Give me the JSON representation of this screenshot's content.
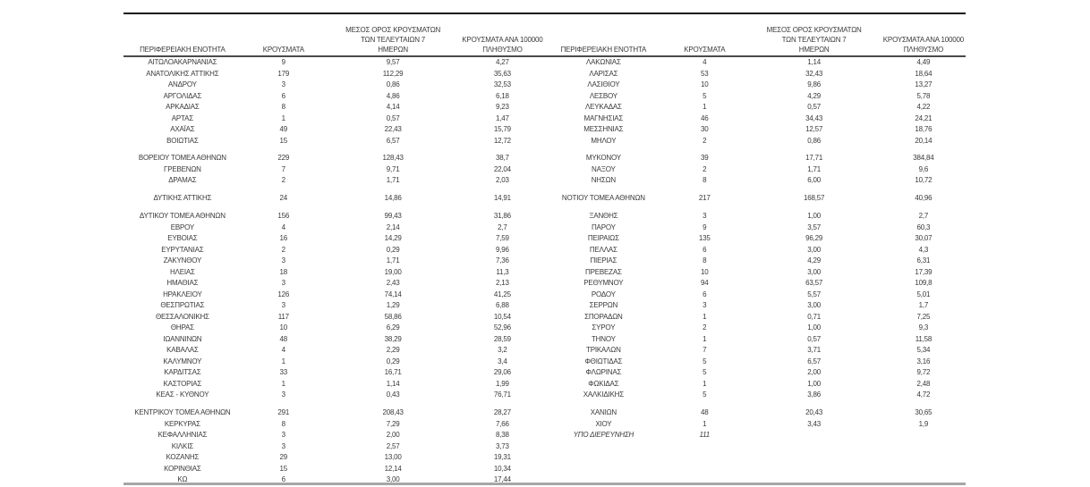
{
  "table": {
    "headers": {
      "region": "ΠΕΡΙΦΕΡΕΙΑΚΗ ΕΝΟΤΗΤΑ",
      "cases": "ΚΡΟΥΣΜΑΤΑ",
      "avg7_lines": [
        "ΜΕΣΟΣ ΟΡΟΣ ΚΡΟΥΣΜΑΤΩΝ",
        "ΤΩΝ ΤΕΛΕΥΤΑΙΩΝ 7",
        "ΗΜΕΡΩΝ"
      ],
      "per100k_lines": [
        "ΚΡΟΥΣΜΑΤΑ ΑΝΑ 100000",
        "ΠΛΗΘΥΣΜΟ"
      ]
    },
    "colors": {
      "text": "#3a3a3a",
      "top_rule": "#161616",
      "header_rule": "#4a4a4a",
      "bottom_rule": "#a6a6a6"
    },
    "left_rows": [
      {
        "region": "ΑΙΤΩΛΟΑΚΑΡΝΑΝΙΑΣ",
        "cases": "9",
        "avg7": "9,57",
        "per100k": "4,27"
      },
      {
        "region": "ΑΝΑΤΟΛΙΚΗΣ ΑΤΤΙΚΗΣ",
        "cases": "179",
        "avg7": "112,29",
        "per100k": "35,63"
      },
      {
        "region": "ΑΝΔΡΟΥ",
        "cases": "3",
        "avg7": "0,86",
        "per100k": "32,53"
      },
      {
        "region": "ΑΡΓΟΛΙΔΑΣ",
        "cases": "6",
        "avg7": "4,86",
        "per100k": "6,18"
      },
      {
        "region": "ΑΡΚΑΔΙΑΣ",
        "cases": "8",
        "avg7": "4,14",
        "per100k": "9,23"
      },
      {
        "region": "ΑΡΤΑΣ",
        "cases": "1",
        "avg7": "0,57",
        "per100k": "1,47"
      },
      {
        "region": "ΑΧΑΪΑΣ",
        "cases": "49",
        "avg7": "22,43",
        "per100k": "15,79"
      },
      {
        "region": "ΒΟΙΩΤΙΑΣ",
        "cases": "15",
        "avg7": "6,57",
        "per100k": "12,72"
      },
      {
        "blank": true
      },
      {
        "region": "ΒΟΡΕΙΟΥ ΤΟΜΕΑ ΑΘΗΝΩΝ",
        "cases": "229",
        "avg7": "128,43",
        "per100k": "38,7"
      },
      {
        "region": "ΓΡΕΒΕΝΩΝ",
        "cases": "7",
        "avg7": "9,71",
        "per100k": "22,04"
      },
      {
        "region": "ΔΡΑΜΑΣ",
        "cases": "2",
        "avg7": "1,71",
        "per100k": "2,03"
      },
      {
        "blank": true
      },
      {
        "region": "ΔΥΤΙΚΗΣ ΑΤΤΙΚΗΣ",
        "cases": "24",
        "avg7": "14,86",
        "per100k": "14,91"
      },
      {
        "blank": true
      },
      {
        "region": "ΔΥΤΙΚΟΥ ΤΟΜΕΑ ΑΘΗΝΩΝ",
        "cases": "156",
        "avg7": "99,43",
        "per100k": "31,86"
      },
      {
        "region": "ΕΒΡΟΥ",
        "cases": "4",
        "avg7": "2,14",
        "per100k": "2,7"
      },
      {
        "region": "ΕΥΒΟΙΑΣ",
        "cases": "16",
        "avg7": "14,29",
        "per100k": "7,59"
      },
      {
        "region": "ΕΥΡΥΤΑΝΙΑΣ",
        "cases": "2",
        "avg7": "0,29",
        "per100k": "9,96"
      },
      {
        "region": "ΖΑΚΥΝΘΟΥ",
        "cases": "3",
        "avg7": "1,71",
        "per100k": "7,36"
      },
      {
        "region": "ΗΛΕΙΑΣ",
        "cases": "18",
        "avg7": "19,00",
        "per100k": "11,3"
      },
      {
        "region": "ΗΜΑΘΙΑΣ",
        "cases": "3",
        "avg7": "2,43",
        "per100k": "2,13"
      },
      {
        "region": "ΗΡΑΚΛΕΙΟΥ",
        "cases": "126",
        "avg7": "74,14",
        "per100k": "41,25"
      },
      {
        "region": "ΘΕΣΠΡΩΤΙΑΣ",
        "cases": "3",
        "avg7": "1,29",
        "per100k": "6,88"
      },
      {
        "region": "ΘΕΣΣΑΛΟΝΙΚΗΣ",
        "cases": "117",
        "avg7": "58,86",
        "per100k": "10,54"
      },
      {
        "region": "ΘΗΡΑΣ",
        "cases": "10",
        "avg7": "6,29",
        "per100k": "52,96"
      },
      {
        "region": "ΙΩΑΝΝΙΝΩΝ",
        "cases": "48",
        "avg7": "38,29",
        "per100k": "28,59"
      },
      {
        "region": "ΚΑΒΑΛΑΣ",
        "cases": "4",
        "avg7": "2,29",
        "per100k": "3,2"
      },
      {
        "region": "ΚΑΛΥΜΝΟΥ",
        "cases": "1",
        "avg7": "0,29",
        "per100k": "3,4"
      },
      {
        "region": "ΚΑΡΔΙΤΣΑΣ",
        "cases": "33",
        "avg7": "16,71",
        "per100k": "29,06"
      },
      {
        "region": "ΚΑΣΤΟΡΙΑΣ",
        "cases": "1",
        "avg7": "1,14",
        "per100k": "1,99"
      },
      {
        "region": "ΚΕΑΣ - ΚΥΘΝΟΥ",
        "cases": "3",
        "avg7": "0,43",
        "per100k": "76,71"
      },
      {
        "blank": true
      },
      {
        "region": "ΚΕΝΤΡΙΚΟΥ ΤΟΜΕΑ ΑΘΗΝΩΝ",
        "cases": "291",
        "avg7": "208,43",
        "per100k": "28,27"
      },
      {
        "region": "ΚΕΡΚΥΡΑΣ",
        "cases": "8",
        "avg7": "7,29",
        "per100k": "7,66"
      },
      {
        "region": "ΚΕΦΑΛΛΗΝΙΑΣ",
        "cases": "3",
        "avg7": "2,00",
        "per100k": "8,38"
      },
      {
        "region": "ΚΙΛΚΙΣ",
        "cases": "3",
        "avg7": "2,57",
        "per100k": "3,73"
      },
      {
        "region": "ΚΟΖΑΝΗΣ",
        "cases": "29",
        "avg7": "13,00",
        "per100k": "19,31"
      },
      {
        "region": "ΚΟΡΙΝΘΙΑΣ",
        "cases": "15",
        "avg7": "12,14",
        "per100k": "10,34"
      },
      {
        "region": "ΚΩ",
        "cases": "6",
        "avg7": "3,00",
        "per100k": "17,44"
      }
    ],
    "right_rows": [
      {
        "region": "ΛΑΚΩΝΙΑΣ",
        "cases": "4",
        "avg7": "1,14",
        "per100k": "4,49"
      },
      {
        "region": "ΛΑΡΙΣΑΣ",
        "cases": "53",
        "avg7": "32,43",
        "per100k": "18,64"
      },
      {
        "region": "ΛΑΣΙΘΙΟΥ",
        "cases": "10",
        "avg7": "9,86",
        "per100k": "13,27"
      },
      {
        "region": "ΛΕΣΒΟΥ",
        "cases": "5",
        "avg7": "4,29",
        "per100k": "5,78"
      },
      {
        "region": "ΛΕΥΚΑΔΑΣ",
        "cases": "1",
        "avg7": "0,57",
        "per100k": "4,22"
      },
      {
        "region": "ΜΑΓΝΗΣΙΑΣ",
        "cases": "46",
        "avg7": "34,43",
        "per100k": "24,21"
      },
      {
        "region": "ΜΕΣΣΗΝΙΑΣ",
        "cases": "30",
        "avg7": "12,57",
        "per100k": "18,76"
      },
      {
        "region": "ΜΗΛΟΥ",
        "cases": "2",
        "avg7": "0,86",
        "per100k": "20,14"
      },
      {
        "blank": true
      },
      {
        "region": "ΜΥΚΟΝΟΥ",
        "cases": "39",
        "avg7": "17,71",
        "per100k": "384,84"
      },
      {
        "region": "ΝΑΞΟΥ",
        "cases": "2",
        "avg7": "1,71",
        "per100k": "9,6"
      },
      {
        "region": "ΝΗΣΩΝ",
        "cases": "8",
        "avg7": "6,00",
        "per100k": "10,72"
      },
      {
        "blank": true
      },
      {
        "region": "ΝΟΤΙΟΥ ΤΟΜΕΑ ΑΘΗΝΩΝ",
        "cases": "217",
        "avg7": "168,57",
        "per100k": "40,96"
      },
      {
        "blank": true
      },
      {
        "region": "ΞΑΝΘΗΣ",
        "cases": "3",
        "avg7": "1,00",
        "per100k": "2,7"
      },
      {
        "region": "ΠΑΡΟΥ",
        "cases": "9",
        "avg7": "3,57",
        "per100k": "60,3"
      },
      {
        "region": "ΠΕΙΡΑΙΩΣ",
        "cases": "135",
        "avg7": "96,29",
        "per100k": "30,07"
      },
      {
        "region": "ΠΕΛΛΑΣ",
        "cases": "6",
        "avg7": "3,00",
        "per100k": "4,3"
      },
      {
        "region": "ΠΙΕΡΙΑΣ",
        "cases": "8",
        "avg7": "4,29",
        "per100k": "6,31"
      },
      {
        "region": "ΠΡΕΒΕΖΑΣ",
        "cases": "10",
        "avg7": "3,00",
        "per100k": "17,39"
      },
      {
        "region": "ΡΕΘΥΜΝΟΥ",
        "cases": "94",
        "avg7": "63,57",
        "per100k": "109,8"
      },
      {
        "region": "ΡΟΔΟΥ",
        "cases": "6",
        "avg7": "5,57",
        "per100k": "5,01"
      },
      {
        "region": "ΣΕΡΡΩΝ",
        "cases": "3",
        "avg7": "3,00",
        "per100k": "1,7"
      },
      {
        "region": "ΣΠΟΡΑΔΩΝ",
        "cases": "1",
        "avg7": "0,71",
        "per100k": "7,25"
      },
      {
        "region": "ΣΥΡΟΥ",
        "cases": "2",
        "avg7": "1,00",
        "per100k": "9,3"
      },
      {
        "region": "ΤΗΝΟΥ",
        "cases": "1",
        "avg7": "0,57",
        "per100k": "11,58"
      },
      {
        "region": "ΤΡΙΚΑΛΩΝ",
        "cases": "7",
        "avg7": "3,71",
        "per100k": "5,34"
      },
      {
        "region": "ΦΘΙΩΤΙΔΑΣ",
        "cases": "5",
        "avg7": "6,57",
        "per100k": "3,16"
      },
      {
        "region": "ΦΛΩΡΙΝΑΣ",
        "cases": "5",
        "avg7": "2,00",
        "per100k": "9,72"
      },
      {
        "region": "ΦΩΚΙΔΑΣ",
        "cases": "1",
        "avg7": "1,00",
        "per100k": "2,48"
      },
      {
        "region": "ΧΑΛΚΙΔΙΚΗΣ",
        "cases": "5",
        "avg7": "3,86",
        "per100k": "4,72"
      },
      {
        "blank": true
      },
      {
        "region": "ΧΑΝΙΩΝ",
        "cases": "48",
        "avg7": "20,43",
        "per100k": "30,65"
      },
      {
        "region": "ΧΙΟΥ",
        "cases": "1",
        "avg7": "3,43",
        "per100k": "1,9"
      },
      {
        "region": "ΥΠΟ ΔΙΕΡΕΥΝΗΣΗ",
        "cases": "111",
        "avg7": "",
        "per100k": "",
        "italic": true
      }
    ]
  }
}
